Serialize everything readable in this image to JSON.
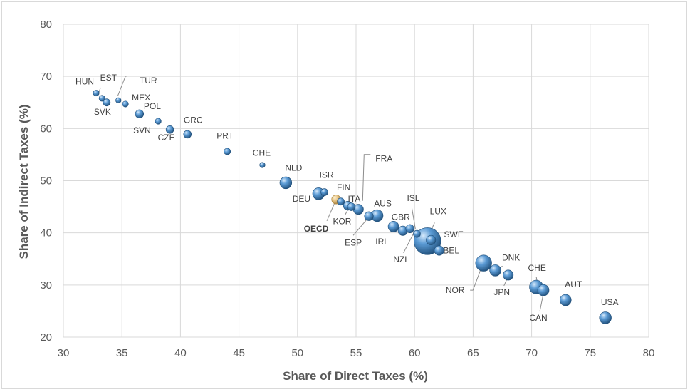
{
  "chart_data": {
    "type": "scatter",
    "xlabel": "Share of Direct Taxes (%)",
    "ylabel": "Share of Indirect Taxes (%)",
    "xlim": [
      30,
      80
    ],
    "ylim": [
      20,
      80
    ],
    "xticks": [
      30,
      35,
      40,
      45,
      50,
      55,
      60,
      65,
      70,
      75,
      80
    ],
    "yticks": [
      20,
      30,
      40,
      50,
      60,
      70,
      80
    ],
    "grid": true,
    "colors": {
      "point": "#2e75b6",
      "highlight": "#d9b873",
      "grid": "#d9d9d9",
      "leader": "#8c8c8c"
    },
    "points": [
      {
        "label": "HUN",
        "x": 32.8,
        "y": 66.8,
        "size": 1
      },
      {
        "label": "EST",
        "x": 33.3,
        "y": 65.8,
        "size": 1
      },
      {
        "label": "SVK",
        "x": 33.7,
        "y": 65.0,
        "size": 1.2
      },
      {
        "label": "TUR",
        "x": 34.7,
        "y": 65.4,
        "size": 0.9
      },
      {
        "label": "MEX",
        "x": 35.3,
        "y": 64.7,
        "size": 1
      },
      {
        "label": "POL",
        "x": 36.5,
        "y": 62.8,
        "size": 1.4
      },
      {
        "label": "SVN",
        "x": 38.1,
        "y": 61.4,
        "size": 1
      },
      {
        "label": "CZE",
        "x": 39.1,
        "y": 59.8,
        "size": 1.3
      },
      {
        "label": "GRC",
        "x": 40.6,
        "y": 58.9,
        "size": 1.3
      },
      {
        "label": "PRT",
        "x": 44.0,
        "y": 55.6,
        "size": 1.1
      },
      {
        "label": "CHE",
        "x": 47.0,
        "y": 53.0,
        "size": 0.9
      },
      {
        "label": "NLD",
        "x": 49.0,
        "y": 49.6,
        "size": 2.0
      },
      {
        "label": "DEU",
        "x": 51.8,
        "y": 47.5,
        "size": 2.0
      },
      {
        "label": "ISR",
        "x": 52.3,
        "y": 47.8,
        "size": 1.2
      },
      {
        "label": "OECD",
        "x": 53.3,
        "y": 46.4,
        "size": 1.5,
        "highlight": true
      },
      {
        "label": "FIN",
        "x": 53.7,
        "y": 46.0,
        "size": 1.2
      },
      {
        "label": "KOR",
        "x": 54.3,
        "y": 45.2,
        "size": 1.5
      },
      {
        "label": "ITA",
        "x": 54.6,
        "y": 45.0,
        "size": 1.3
      },
      {
        "label": "FRA",
        "x": 55.2,
        "y": 44.5,
        "size": 1.7
      },
      {
        "label": "ESP",
        "x": 56.1,
        "y": 43.2,
        "size": 1.5
      },
      {
        "label": "AUS",
        "x": 56.8,
        "y": 43.3,
        "size": 2.0
      },
      {
        "label": "IRL",
        "x": 58.2,
        "y": 41.2,
        "size": 1.8
      },
      {
        "label": "GBR",
        "x": 59.0,
        "y": 40.4,
        "size": 1.6
      },
      {
        "label": "NZL",
        "x": 59.6,
        "y": 40.8,
        "size": 1.4
      },
      {
        "label": "ISL",
        "x": 60.2,
        "y": 39.8,
        "size": 1.2
      },
      {
        "label": "LUX",
        "x": 61.1,
        "y": 38.4,
        "size": 4.5
      },
      {
        "label": "SWE",
        "x": 61.4,
        "y": 38.6,
        "size": 1.6
      },
      {
        "label": "BEL",
        "x": 62.1,
        "y": 36.6,
        "size": 1.6
      },
      {
        "label": "NOR",
        "x": 65.9,
        "y": 34.2,
        "size": 2.7
      },
      {
        "label": "DNK",
        "x": 66.9,
        "y": 32.8,
        "size": 1.9
      },
      {
        "label": "JPN",
        "x": 68.0,
        "y": 31.9,
        "size": 1.7
      },
      {
        "label": "CHE",
        "x": 70.4,
        "y": 29.6,
        "size": 2.3
      },
      {
        "label": "CAN",
        "x": 71.0,
        "y": 29.0,
        "size": 1.9
      },
      {
        "label": "AUT",
        "x": 72.9,
        "y": 27.1,
        "size": 1.9
      },
      {
        "label": "USA",
        "x": 76.3,
        "y": 23.7,
        "size": 2.0
      }
    ]
  }
}
